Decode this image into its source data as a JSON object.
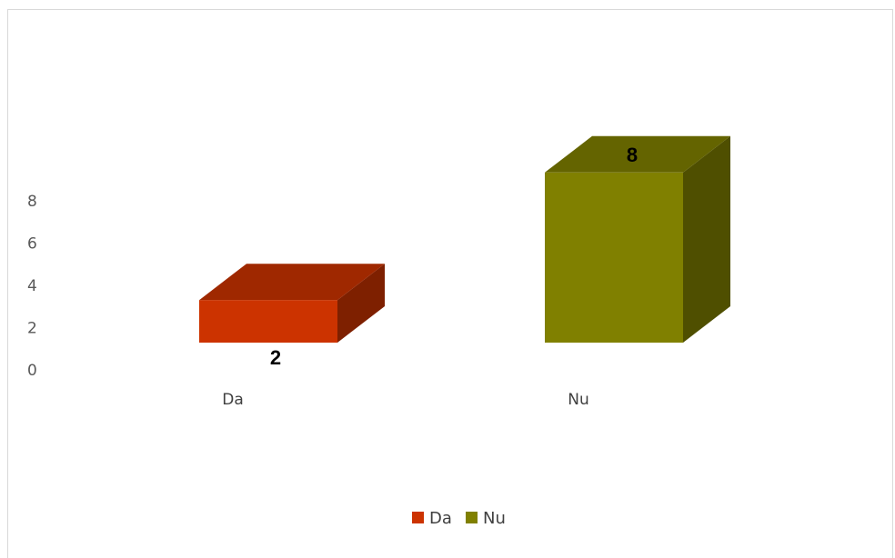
{
  "chart_data": {
    "type": "bar",
    "style": "3d",
    "categories": [
      "Da",
      "Nu"
    ],
    "values": [
      2,
      8
    ],
    "data_labels": [
      "2",
      "8"
    ],
    "colors": [
      "#cc3300",
      "#808000"
    ],
    "y_ticks": [
      "0",
      "2",
      "4",
      "6",
      "8"
    ],
    "ylim": [
      0,
      8
    ],
    "legend": {
      "position": "bottom",
      "entries": [
        "Da",
        "Nu"
      ]
    },
    "grid": false
  }
}
